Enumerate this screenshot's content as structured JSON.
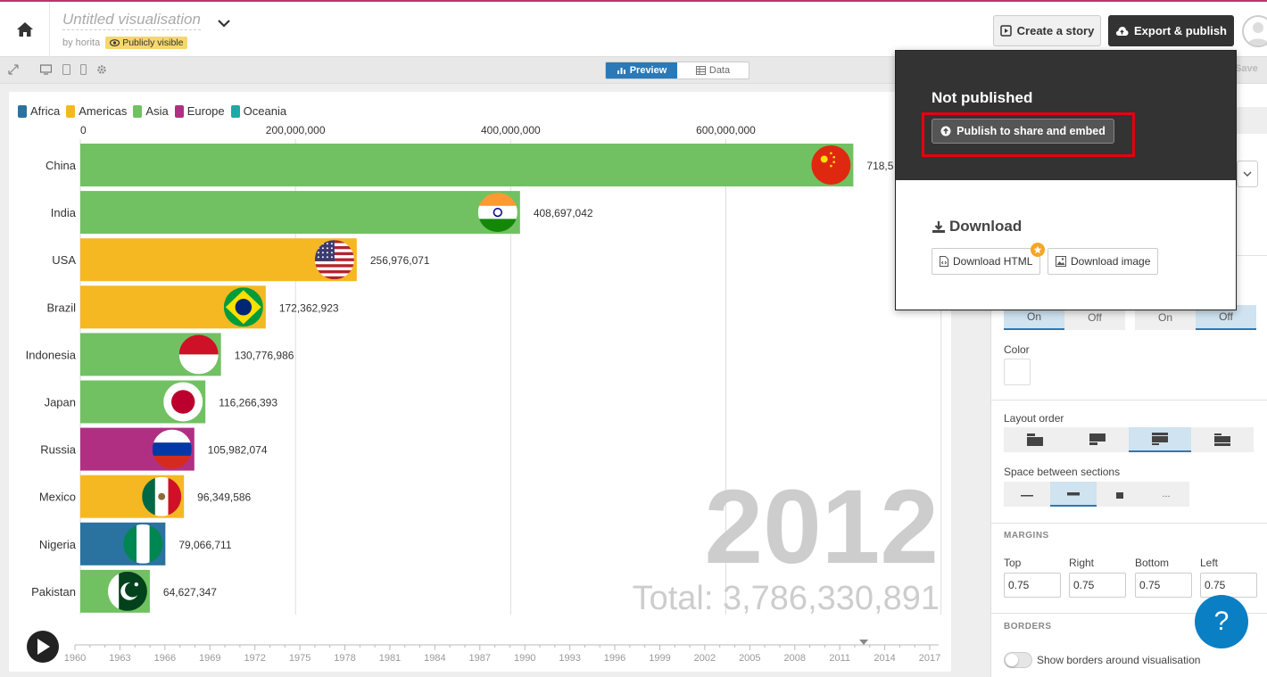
{
  "header": {
    "title": "Untitled visualisation",
    "byline": "by horita",
    "visibility_badge": "Publicly visible",
    "create_story_label": "Create a story",
    "export_label": "Export & publish"
  },
  "toolbar": {
    "preview_label": "Preview",
    "data_label": "Data",
    "save_label": "Save"
  },
  "popup": {
    "status_title": "Not published",
    "publish_label": "Publish to share and embed",
    "download_title": "Download",
    "download_html_label": "Download HTML",
    "download_image_label": "Download image"
  },
  "panel": {
    "toggle_on": "On",
    "toggle_off": "Off",
    "color_label": "Color",
    "layout_order_label": "Layout order",
    "space_label": "Space between sections",
    "space_more": "...",
    "margins_head": "MARGINS",
    "margins": [
      {
        "label": "Top",
        "value": "0.75"
      },
      {
        "label": "Right",
        "value": "0.75"
      },
      {
        "label": "Bottom",
        "value": "0.75"
      },
      {
        "label": "Left",
        "value": "0.75"
      }
    ],
    "borders_head": "BORDERS",
    "borders_toggle_label": "Show borders around visualisation",
    "help_label": "?"
  },
  "colors": {
    "Africa": "#2a72a0",
    "Americas": "#f5b822",
    "Asia": "#71c162",
    "Europe": "#b12f82",
    "Oceania": "#1fa9a5",
    "accent": "#2a79b8",
    "publish_highlight": "#e3000f"
  },
  "chart_data": {
    "type": "bar",
    "orientation": "horizontal",
    "legend": [
      "Africa",
      "Americas",
      "Asia",
      "Europe",
      "Oceania"
    ],
    "x_ticks": [
      0,
      200000000,
      400000000,
      600000000
    ],
    "x_tick_labels": [
      "0",
      "200,000,000",
      "400,000,000",
      "600,000,000"
    ],
    "xlim": [
      0,
      719000000
    ],
    "bars": [
      {
        "name": "China",
        "value": 718500000,
        "label": "718,5",
        "region": "Asia",
        "flag": "china-flag-icon"
      },
      {
        "name": "India",
        "value": 408697042,
        "label": "408,697,042",
        "region": "Asia",
        "flag": "india-flag-icon"
      },
      {
        "name": "USA",
        "value": 256976071,
        "label": "256,976,071",
        "region": "Americas",
        "flag": "usa-flag-icon"
      },
      {
        "name": "Brazil",
        "value": 172362923,
        "label": "172,362,923",
        "region": "Americas",
        "flag": "brazil-flag-icon"
      },
      {
        "name": "Indonesia",
        "value": 130776986,
        "label": "130,776,986",
        "region": "Asia",
        "flag": "indonesia-flag-icon"
      },
      {
        "name": "Japan",
        "value": 116266393,
        "label": "116,266,393",
        "region": "Asia",
        "flag": "japan-flag-icon"
      },
      {
        "name": "Russia",
        "value": 105982074,
        "label": "105,982,074",
        "region": "Europe",
        "flag": "russia-flag-icon"
      },
      {
        "name": "Mexico",
        "value": 96349586,
        "label": "96,349,586",
        "region": "Americas",
        "flag": "mexico-flag-icon"
      },
      {
        "name": "Nigeria",
        "value": 79066711,
        "label": "79,066,711",
        "region": "Africa",
        "flag": "nigeria-flag-icon"
      },
      {
        "name": "Pakistan",
        "value": 64627347,
        "label": "64,627,347",
        "region": "Asia",
        "flag": "pakistan-flag-icon"
      }
    ],
    "year": "2012",
    "total_label": "Total: 3,786,330,891",
    "timeline": {
      "start": 1960,
      "end": 2017,
      "current": 2012.6,
      "tick_labels": [
        "1960",
        "1963",
        "1966",
        "1969",
        "1972",
        "1975",
        "1978",
        "1981",
        "1984",
        "1987",
        "1990",
        "1993",
        "1996",
        "1999",
        "2002",
        "2005",
        "2008",
        "2011",
        "2014",
        "2017"
      ]
    }
  }
}
